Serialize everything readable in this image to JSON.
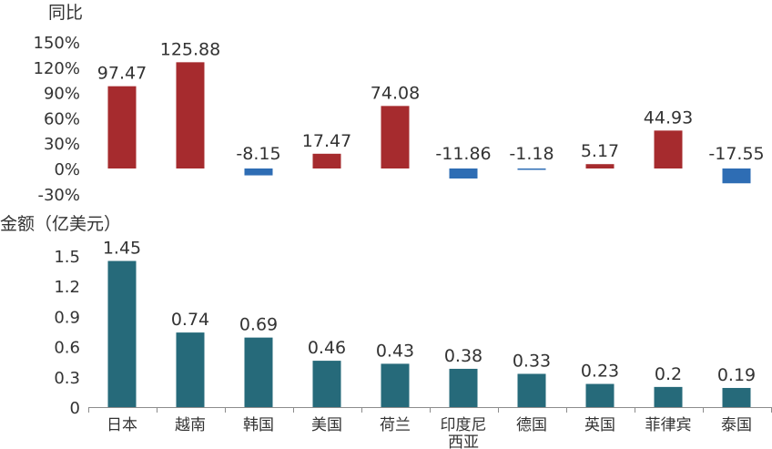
{
  "colors": {
    "positive": "#A62B2E",
    "negative": "#2E6DB4",
    "amount": "#266A7A",
    "axis": "#8C8C8C",
    "text": "#333333"
  },
  "chart_data": [
    {
      "type": "bar",
      "title": "",
      "ylabel": "同比",
      "categories": [
        "日本",
        "越南",
        "韩国",
        "美国",
        "荷兰",
        "印度尼西亚",
        "德国",
        "英国",
        "菲律宾",
        "泰国"
      ],
      "values": [
        97.47,
        125.88,
        -8.15,
        17.47,
        74.08,
        -11.86,
        -1.18,
        5.17,
        44.93,
        -17.55
      ],
      "data_labels": [
        "97.47",
        "125.88",
        "-8.15",
        "17.47",
        "74.08",
        "-11.86",
        "-1.18",
        "5.17",
        "44.93",
        "-17.55"
      ],
      "ylim": [
        -30,
        150
      ],
      "yticks": [
        -30,
        0,
        30,
        60,
        90,
        120,
        150
      ],
      "ytick_labels": [
        "-30%",
        "0%",
        "30%",
        "60%",
        "90%",
        "120%",
        "150%"
      ],
      "grid": false,
      "legend": "none"
    },
    {
      "type": "bar",
      "title": "",
      "ylabel": "金额（亿美元）",
      "categories": [
        "日本",
        "越南",
        "韩国",
        "美国",
        "荷兰",
        "印度尼西亚",
        "德国",
        "英国",
        "菲律宾",
        "泰国"
      ],
      "category_labels": [
        [
          "日本"
        ],
        [
          "越南"
        ],
        [
          "韩国"
        ],
        [
          "美国"
        ],
        [
          "荷兰"
        ],
        [
          "印度尼",
          "西亚"
        ],
        [
          "德国"
        ],
        [
          "英国"
        ],
        [
          "菲律宾"
        ],
        [
          "泰国"
        ]
      ],
      "values": [
        1.45,
        0.74,
        0.69,
        0.46,
        0.43,
        0.38,
        0.33,
        0.23,
        0.2,
        0.19
      ],
      "data_labels": [
        "1.45",
        "0.74",
        "0.69",
        "0.46",
        "0.43",
        "0.38",
        "0.33",
        "0.23",
        "0.2",
        "0.19"
      ],
      "ylim": [
        0,
        1.5
      ],
      "yticks": [
        0,
        0.3,
        0.6,
        0.9,
        1.2,
        1.5
      ],
      "ytick_labels": [
        "0",
        "0.3",
        "0.6",
        "0.9",
        "1.2",
        "1.5"
      ],
      "grid": false,
      "legend": "none"
    }
  ]
}
